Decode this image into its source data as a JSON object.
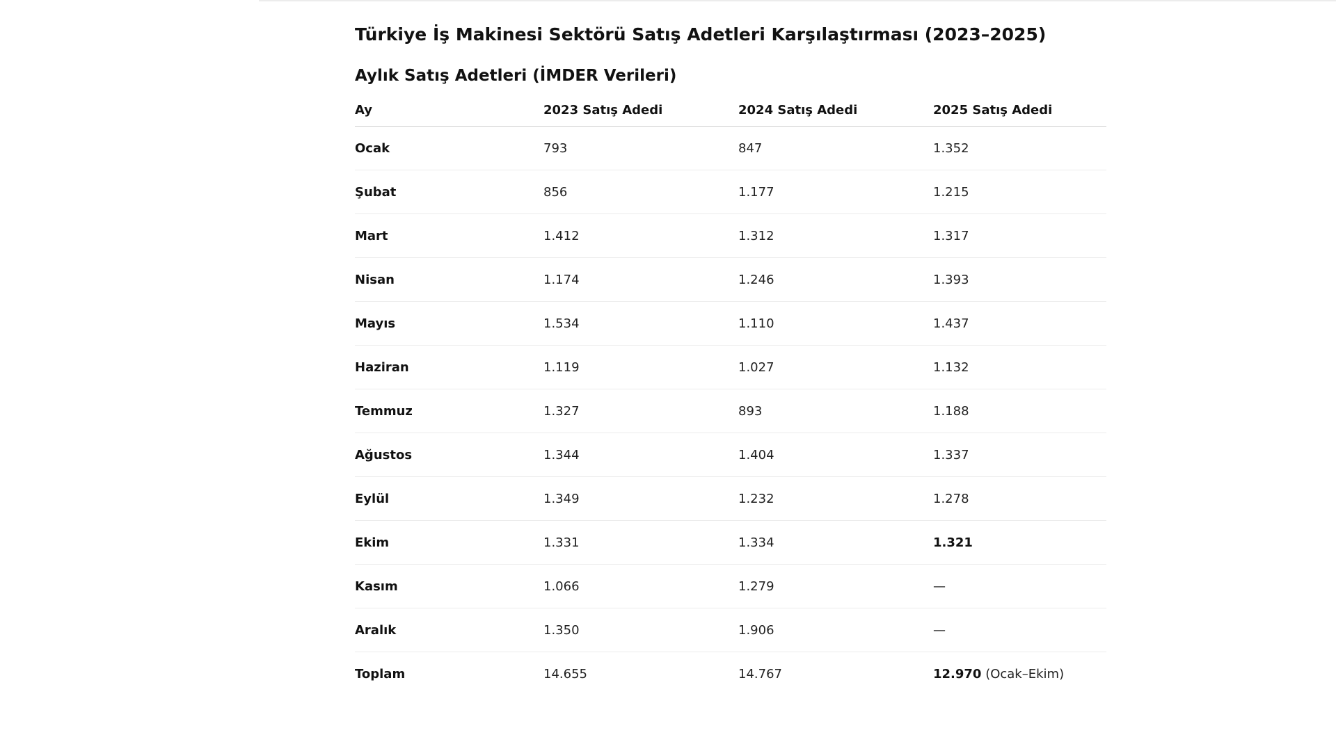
{
  "document": {
    "title": "Türkiye İş Makinesi Sektörü Satış Adetleri Karşılaştırması (2023–2025)",
    "section_title": "Aylık Satış Adetleri (İMDER Verileri)"
  },
  "table": {
    "headers": [
      "Ay",
      "2023 Satış Adedi",
      "2024 Satış Adedi",
      "2025 Satış Adedi"
    ],
    "rows": [
      {
        "month": "Ocak",
        "y2023": "793",
        "y2024": "847",
        "y2025": "1.352",
        "y2025_note": ""
      },
      {
        "month": "Şubat",
        "y2023": "856",
        "y2024": "1.177",
        "y2025": "1.215",
        "y2025_note": ""
      },
      {
        "month": "Mart",
        "y2023": "1.412",
        "y2024": "1.312",
        "y2025": "1.317",
        "y2025_note": ""
      },
      {
        "month": "Nisan",
        "y2023": "1.174",
        "y2024": "1.246",
        "y2025": "1.393",
        "y2025_note": ""
      },
      {
        "month": "Mayıs",
        "y2023": "1.534",
        "y2024": "1.110",
        "y2025": "1.437",
        "y2025_note": ""
      },
      {
        "month": "Haziran",
        "y2023": "1.119",
        "y2024": "1.027",
        "y2025": "1.132",
        "y2025_note": ""
      },
      {
        "month": "Temmuz",
        "y2023": "1.327",
        "y2024": "893",
        "y2025": "1.188",
        "y2025_note": ""
      },
      {
        "month": "Ağustos",
        "y2023": "1.344",
        "y2024": "1.404",
        "y2025": "1.337",
        "y2025_note": ""
      },
      {
        "month": "Eylül",
        "y2023": "1.349",
        "y2024": "1.232",
        "y2025": "1.278",
        "y2025_note": ""
      },
      {
        "month": "Ekim",
        "y2023": "1.331",
        "y2024": "1.334",
        "y2025": "1.321",
        "y2025_note": "",
        "y2025_bold": true
      },
      {
        "month": "Kasım",
        "y2023": "1.066",
        "y2024": "1.279",
        "y2025": "—",
        "y2025_note": ""
      },
      {
        "month": "Aralık",
        "y2023": "1.350",
        "y2024": "1.906",
        "y2025": "—",
        "y2025_note": ""
      },
      {
        "month": "Toplam",
        "y2023": "14.655",
        "y2024": "14.767",
        "y2025": "12.970",
        "y2025_note": " (Ocak–Ekim)",
        "y2025_bold": true
      }
    ]
  }
}
